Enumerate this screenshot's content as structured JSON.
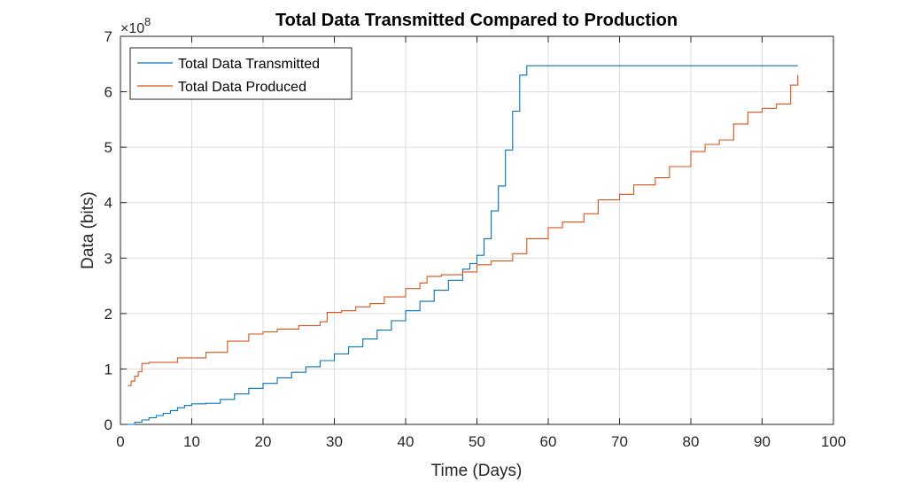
{
  "chart_data": {
    "type": "line",
    "title": "Total Data Transmitted Compared to Production",
    "xlabel": "Time (Days)",
    "ylabel": "Data (bits)",
    "y_exponent_label": "×10",
    "y_exponent_power": "8",
    "xlim": [
      0,
      100
    ],
    "ylim": [
      0,
      7
    ],
    "xticks": [
      "0",
      "10",
      "20",
      "30",
      "40",
      "50",
      "60",
      "70",
      "80",
      "90",
      "100"
    ],
    "yticks": [
      "0",
      "1",
      "2",
      "3",
      "4",
      "5",
      "6",
      "7"
    ],
    "grid": true,
    "legend_position": "top-left",
    "series": [
      {
        "name": "Total Data Transmitted",
        "color": "#0072BD",
        "step": true,
        "x": [
          1,
          2,
          3,
          4,
          5,
          6,
          7,
          8,
          9,
          10,
          12,
          14,
          16,
          18,
          20,
          22,
          24,
          26,
          28,
          30,
          32,
          34,
          36,
          38,
          40,
          42,
          44,
          46,
          48,
          49,
          50,
          51,
          52,
          53,
          54,
          55,
          56,
          57,
          60,
          65,
          70,
          75,
          80,
          85,
          90,
          95
        ],
        "values": [
          0.0,
          0.04,
          0.08,
          0.12,
          0.16,
          0.2,
          0.25,
          0.3,
          0.34,
          0.37,
          0.38,
          0.45,
          0.55,
          0.65,
          0.74,
          0.84,
          0.94,
          1.04,
          1.15,
          1.27,
          1.4,
          1.54,
          1.7,
          1.87,
          2.05,
          2.22,
          2.42,
          2.6,
          2.8,
          2.9,
          3.05,
          3.35,
          3.85,
          4.3,
          4.95,
          5.65,
          6.3,
          6.47,
          6.47,
          6.47,
          6.47,
          6.47,
          6.47,
          6.47,
          6.47,
          6.47
        ]
      },
      {
        "name": "Total Data Produced",
        "color": "#D95319",
        "step": true,
        "x": [
          1,
          1.5,
          2,
          2.5,
          3,
          4,
          5,
          6,
          8,
          10,
          12,
          15,
          18,
          20,
          22,
          25,
          28,
          29,
          31,
          33,
          35,
          37,
          40,
          42,
          43,
          45,
          48,
          50,
          52,
          55,
          57,
          60,
          62,
          65,
          67,
          70,
          72,
          75,
          77,
          80,
          82,
          84,
          86,
          88,
          90,
          92,
          94,
          95
        ],
        "values": [
          0.7,
          0.78,
          0.87,
          0.95,
          1.1,
          1.12,
          1.12,
          1.12,
          1.2,
          1.2,
          1.3,
          1.5,
          1.63,
          1.67,
          1.72,
          1.78,
          1.85,
          2.02,
          2.05,
          2.12,
          2.18,
          2.3,
          2.45,
          2.55,
          2.67,
          2.7,
          2.75,
          2.88,
          2.95,
          3.08,
          3.35,
          3.55,
          3.65,
          3.8,
          4.05,
          4.15,
          4.32,
          4.45,
          4.65,
          4.92,
          5.05,
          5.13,
          5.42,
          5.63,
          5.7,
          5.78,
          6.12,
          6.3
        ]
      }
    ]
  }
}
